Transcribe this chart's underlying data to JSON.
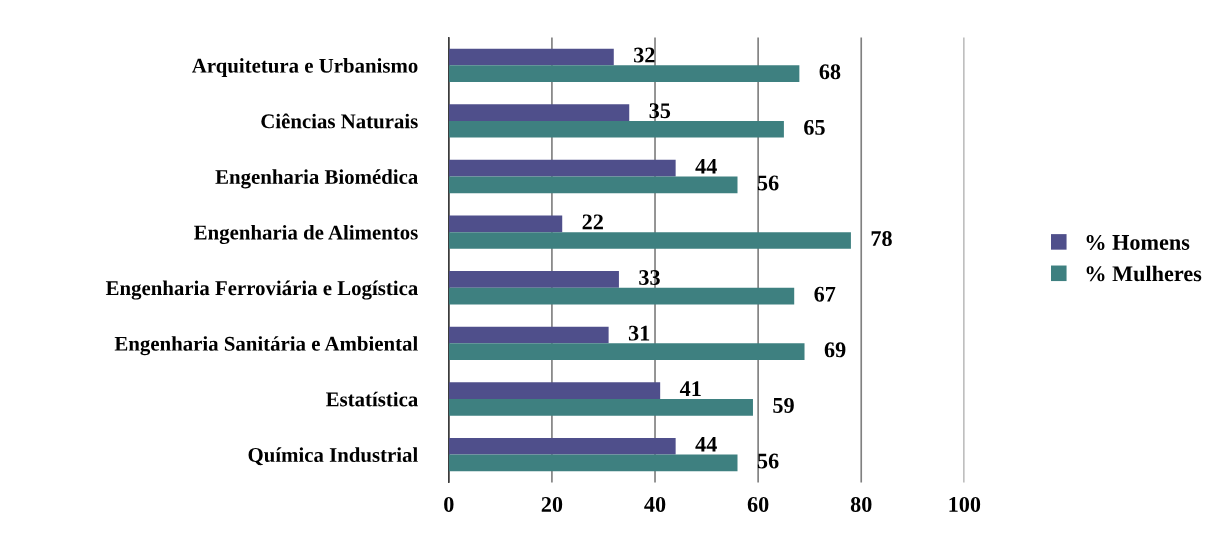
{
  "chart_data": {
    "type": "bar",
    "orientation": "horizontal",
    "categories": [
      "Arquitetura e Urbanismo",
      "Ciências Naturais",
      "Engenharia Biomédica",
      "Engenharia de Alimentos",
      "Engenharia Ferroviária e Logística",
      "Engenharia Sanitária e Ambiental",
      "Estatística",
      "Química Industrial"
    ],
    "series": [
      {
        "name": "% Homens",
        "color": "#4f4f8b",
        "values": [
          32,
          35,
          44,
          22,
          33,
          31,
          41,
          44
        ]
      },
      {
        "name": "% Mulheres",
        "color": "#3e8080",
        "values": [
          68,
          65,
          56,
          78,
          67,
          69,
          59,
          56
        ]
      }
    ],
    "xlim": [
      0,
      100
    ],
    "xticks": [
      0,
      20,
      40,
      60,
      80,
      100
    ],
    "grid": "x",
    "legend": "right",
    "data_labels": true
  }
}
